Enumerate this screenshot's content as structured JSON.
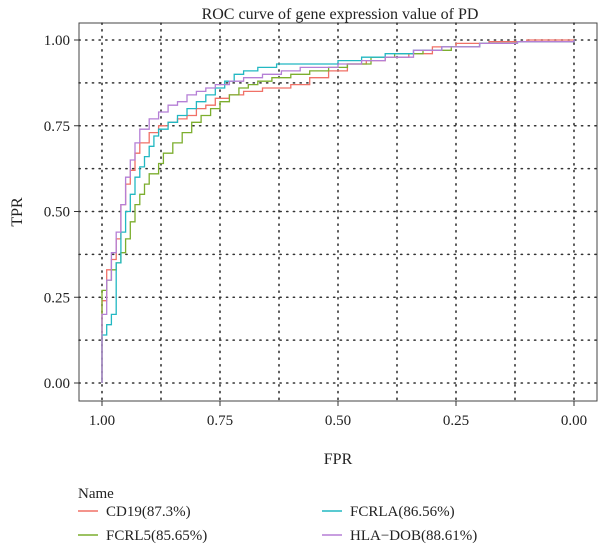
{
  "chart_data": {
    "type": "line",
    "title": "ROC curve of gene expression value of PD",
    "xlabel": "FPR",
    "ylabel": "TPR",
    "xlim": [
      1.0,
      0.0
    ],
    "ylim": [
      0.0,
      1.0
    ],
    "x_reversed": true,
    "grid": "dotted",
    "x_ticks": [
      1.0,
      0.75,
      0.5,
      0.25,
      0.0
    ],
    "x_tick_labels": [
      "1.00",
      "0.75",
      "0.50",
      "0.25",
      "0.00"
    ],
    "y_ticks": [
      0.0,
      0.25,
      0.5,
      0.75,
      1.0
    ],
    "y_tick_labels": [
      "0.00",
      "0.25",
      "0.50",
      "0.75",
      "1.00"
    ],
    "legend": {
      "title": "Name",
      "placement": "bottom"
    },
    "series": [
      {
        "name": "CD19(87.3%)",
        "color": "#f07167",
        "points": [
          [
            1.0,
            0.0
          ],
          [
            1.0,
            0.24
          ],
          [
            0.99,
            0.28
          ],
          [
            0.99,
            0.33
          ],
          [
            0.98,
            0.36
          ],
          [
            0.97,
            0.42
          ],
          [
            0.96,
            0.46
          ],
          [
            0.96,
            0.52
          ],
          [
            0.95,
            0.58
          ],
          [
            0.94,
            0.62
          ],
          [
            0.93,
            0.67
          ],
          [
            0.92,
            0.7
          ],
          [
            0.9,
            0.73
          ],
          [
            0.88,
            0.75
          ],
          [
            0.86,
            0.76
          ],
          [
            0.84,
            0.77
          ],
          [
            0.82,
            0.78
          ],
          [
            0.8,
            0.8
          ],
          [
            0.78,
            0.81
          ],
          [
            0.76,
            0.83
          ],
          [
            0.73,
            0.84
          ],
          [
            0.7,
            0.85
          ],
          [
            0.66,
            0.86
          ],
          [
            0.63,
            0.86
          ],
          [
            0.6,
            0.87
          ],
          [
            0.56,
            0.89
          ],
          [
            0.52,
            0.91
          ],
          [
            0.48,
            0.93
          ],
          [
            0.44,
            0.94
          ],
          [
            0.4,
            0.95
          ],
          [
            0.35,
            0.96
          ],
          [
            0.3,
            0.98
          ],
          [
            0.25,
            0.99
          ],
          [
            0.18,
            0.995
          ],
          [
            0.1,
            1.0
          ],
          [
            0.0,
            1.0
          ]
        ]
      },
      {
        "name": "FCRL5(85.65%)",
        "color": "#7cae2e",
        "points": [
          [
            1.0,
            0.0
          ],
          [
            1.0,
            0.27
          ],
          [
            0.99,
            0.3
          ],
          [
            0.98,
            0.33
          ],
          [
            0.97,
            0.35
          ],
          [
            0.96,
            0.38
          ],
          [
            0.95,
            0.42
          ],
          [
            0.94,
            0.47
          ],
          [
            0.93,
            0.52
          ],
          [
            0.92,
            0.55
          ],
          [
            0.91,
            0.58
          ],
          [
            0.9,
            0.61
          ],
          [
            0.88,
            0.64
          ],
          [
            0.87,
            0.67
          ],
          [
            0.85,
            0.7
          ],
          [
            0.83,
            0.73
          ],
          [
            0.81,
            0.76
          ],
          [
            0.79,
            0.78
          ],
          [
            0.77,
            0.8
          ],
          [
            0.75,
            0.82
          ],
          [
            0.73,
            0.84
          ],
          [
            0.71,
            0.86
          ],
          [
            0.69,
            0.87
          ],
          [
            0.67,
            0.88
          ],
          [
            0.64,
            0.89
          ],
          [
            0.6,
            0.9
          ],
          [
            0.56,
            0.91
          ],
          [
            0.52,
            0.92
          ],
          [
            0.48,
            0.93
          ],
          [
            0.43,
            0.95
          ],
          [
            0.38,
            0.96
          ],
          [
            0.32,
            0.97
          ],
          [
            0.26,
            0.98
          ],
          [
            0.2,
            0.99
          ],
          [
            0.12,
            0.995
          ],
          [
            0.0,
            1.0
          ]
        ]
      },
      {
        "name": "FCRLA(86.56%)",
        "color": "#22b8c2",
        "points": [
          [
            1.0,
            0.0
          ],
          [
            1.0,
            0.14
          ],
          [
            0.99,
            0.17
          ],
          [
            0.98,
            0.2
          ],
          [
            0.97,
            0.25
          ],
          [
            0.97,
            0.35
          ],
          [
            0.96,
            0.44
          ],
          [
            0.95,
            0.5
          ],
          [
            0.94,
            0.55
          ],
          [
            0.93,
            0.6
          ],
          [
            0.92,
            0.63
          ],
          [
            0.91,
            0.66
          ],
          [
            0.9,
            0.69
          ],
          [
            0.89,
            0.72
          ],
          [
            0.88,
            0.74
          ],
          [
            0.86,
            0.76
          ],
          [
            0.84,
            0.78
          ],
          [
            0.82,
            0.8
          ],
          [
            0.8,
            0.82
          ],
          [
            0.78,
            0.84
          ],
          [
            0.76,
            0.86
          ],
          [
            0.74,
            0.88
          ],
          [
            0.72,
            0.9
          ],
          [
            0.7,
            0.91
          ],
          [
            0.67,
            0.92
          ],
          [
            0.63,
            0.93
          ],
          [
            0.59,
            0.93
          ],
          [
            0.55,
            0.93
          ],
          [
            0.5,
            0.94
          ],
          [
            0.45,
            0.95
          ],
          [
            0.4,
            0.96
          ],
          [
            0.34,
            0.97
          ],
          [
            0.28,
            0.98
          ],
          [
            0.2,
            0.99
          ],
          [
            0.12,
            0.995
          ],
          [
            0.0,
            1.0
          ]
        ]
      },
      {
        "name": "HLA−DOB(88.61%)",
        "color": "#b57fd6",
        "points": [
          [
            1.0,
            0.0
          ],
          [
            1.0,
            0.2
          ],
          [
            0.99,
            0.25
          ],
          [
            0.99,
            0.3
          ],
          [
            0.98,
            0.38
          ],
          [
            0.97,
            0.44
          ],
          [
            0.96,
            0.52
          ],
          [
            0.95,
            0.6
          ],
          [
            0.94,
            0.65
          ],
          [
            0.93,
            0.7
          ],
          [
            0.92,
            0.74
          ],
          [
            0.9,
            0.77
          ],
          [
            0.88,
            0.79
          ],
          [
            0.86,
            0.81
          ],
          [
            0.84,
            0.82
          ],
          [
            0.82,
            0.84
          ],
          [
            0.8,
            0.85
          ],
          [
            0.78,
            0.86
          ],
          [
            0.76,
            0.87
          ],
          [
            0.73,
            0.88
          ],
          [
            0.7,
            0.89
          ],
          [
            0.66,
            0.9
          ],
          [
            0.62,
            0.91
          ],
          [
            0.58,
            0.92
          ],
          [
            0.54,
            0.92
          ],
          [
            0.5,
            0.93
          ],
          [
            0.45,
            0.94
          ],
          [
            0.4,
            0.95
          ],
          [
            0.34,
            0.97
          ],
          [
            0.28,
            0.98
          ],
          [
            0.2,
            0.99
          ],
          [
            0.12,
            0.995
          ],
          [
            0.0,
            1.0
          ]
        ]
      }
    ]
  }
}
